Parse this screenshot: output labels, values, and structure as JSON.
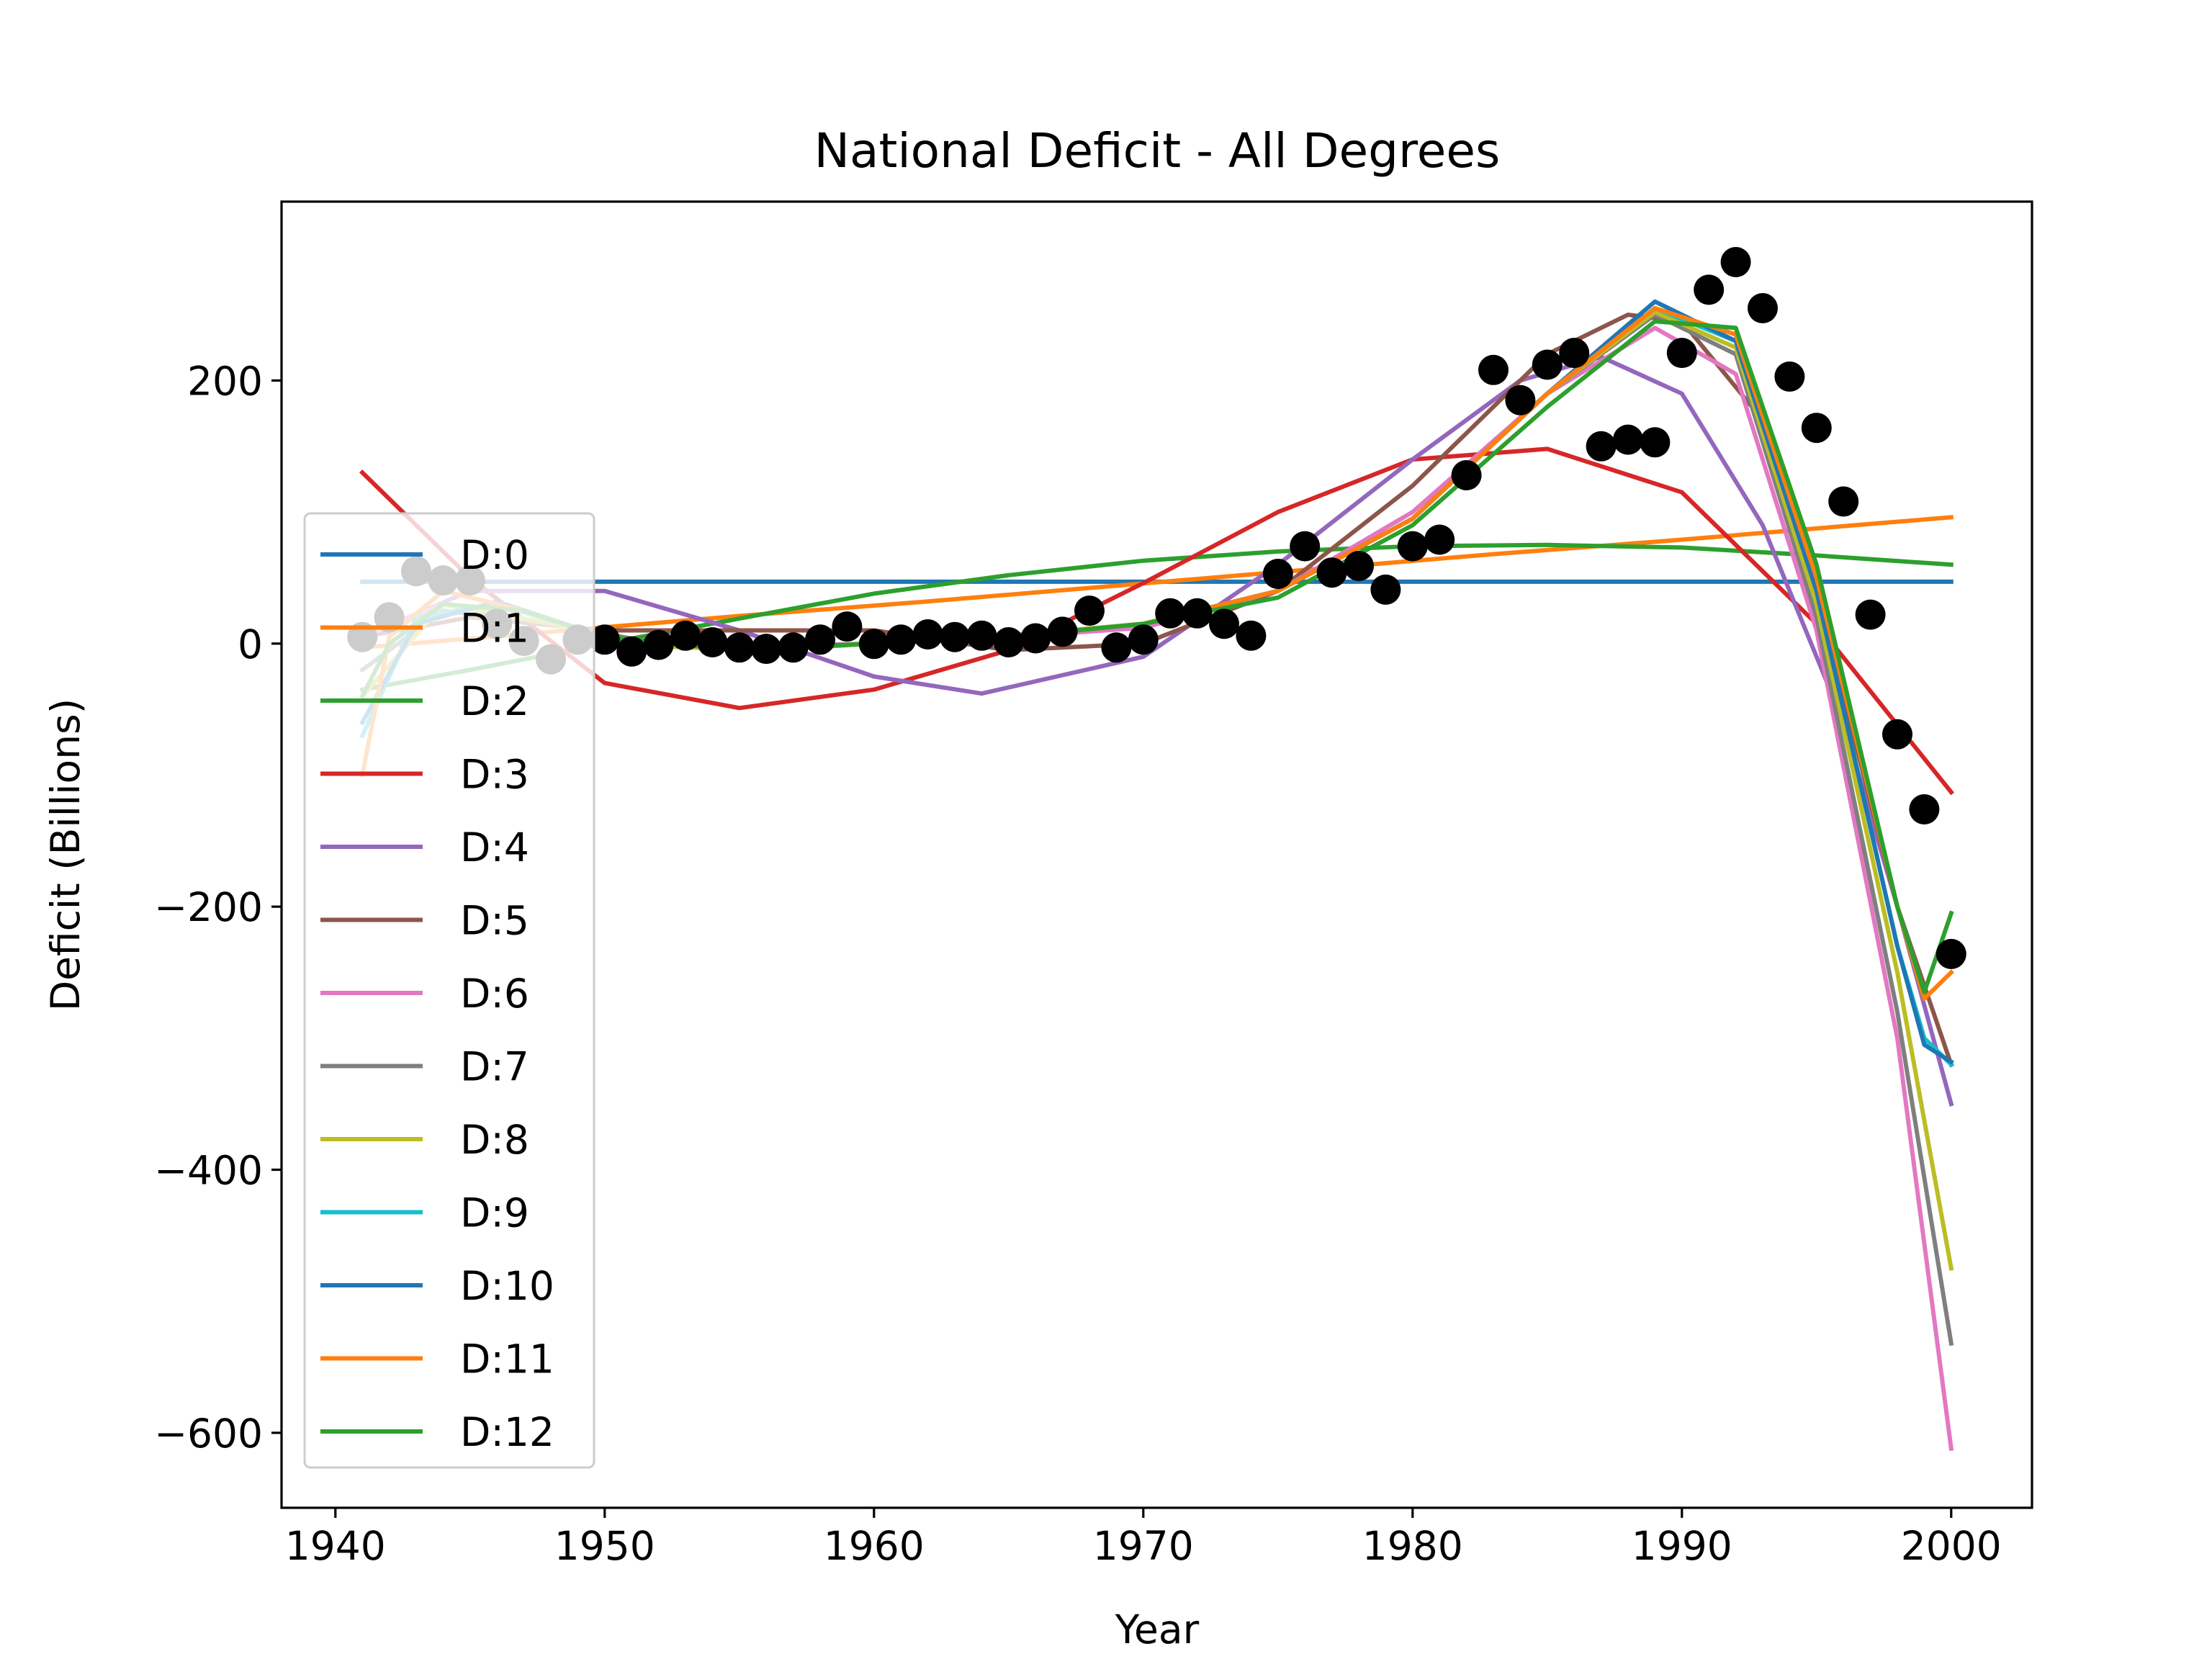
{
  "chart_data": {
    "type": "line",
    "title": "National Deficit - All Degrees",
    "xlabel": "Year",
    "ylabel": "Deficit (Billions)",
    "xlim": [
      1938,
      2003
    ],
    "ylim": [
      -657,
      336
    ],
    "xticks": [
      1940,
      1950,
      1960,
      1970,
      1980,
      1990,
      2000
    ],
    "yticks": [
      -600,
      -400,
      -200,
      0,
      200
    ],
    "grid": false,
    "legend_position": "center-left",
    "points": {
      "name": "",
      "color": "#000000",
      "x": [
        1941,
        1942,
        1943,
        1944,
        1945,
        1946,
        1947,
        1948,
        1949,
        1950,
        1951,
        1952,
        1953,
        1954,
        1955,
        1956,
        1957,
        1958,
        1959,
        1960,
        1961,
        1962,
        1963,
        1964,
        1965,
        1966,
        1967,
        1968,
        1969,
        1970,
        1971,
        1972,
        1973,
        1974,
        1975,
        1976,
        1977,
        1978,
        1979,
        1980,
        1981,
        1982,
        1983,
        1984,
        1985,
        1986,
        1987,
        1988,
        1989,
        1990,
        1991,
        1992,
        1993,
        1994,
        1995,
        1996,
        1997,
        1998,
        1999,
        2000
      ],
      "y": [
        5,
        20,
        55,
        48,
        48,
        15,
        2,
        -12,
        3,
        3,
        -6,
        -1,
        6,
        1,
        -3,
        -4,
        -3,
        3,
        13,
        -0.3,
        3,
        7,
        5,
        6,
        1,
        4,
        9,
        25,
        -3,
        3,
        23,
        23,
        15,
        6,
        53,
        74,
        54,
        59,
        41,
        74,
        79,
        128,
        208,
        185,
        212,
        221,
        150,
        155,
        153,
        221,
        269,
        290,
        255,
        203,
        164,
        108,
        22,
        -69,
        -126,
        -236
      ]
    },
    "series": [
      {
        "name": "D:0",
        "color": "#1f77b4",
        "x": [
          1941,
          1948,
          1955,
          1962,
          1969,
          1976,
          1983,
          1990,
          1997,
          2000
        ],
        "y": [
          47,
          47,
          47,
          47,
          47,
          47,
          47,
          47,
          47,
          47
        ]
      },
      {
        "name": "D:1",
        "color": "#ff7f0e",
        "x": [
          1941,
          1948,
          1955,
          1962,
          1969,
          1976,
          1983,
          1990,
          1997,
          2000
        ],
        "y": [
          -3,
          9,
          21,
          32,
          44,
          56,
          68,
          79,
          91,
          96
        ]
      },
      {
        "name": "D:2",
        "color": "#2ca02c",
        "x": [
          1941,
          1945,
          1950,
          1955,
          1960,
          1965,
          1970,
          1975,
          1980,
          1985,
          1990,
          1995,
          2000
        ],
        "y": [
          -35,
          -20,
          0,
          19,
          38,
          52,
          63,
          70,
          74,
          75,
          73,
          67,
          60
        ]
      },
      {
        "name": "D:3",
        "color": "#d62728",
        "x": [
          1941,
          1945,
          1950,
          1955,
          1960,
          1965,
          1970,
          1975,
          1980,
          1985,
          1990,
          1995,
          2000
        ],
        "y": [
          130,
          50,
          -30,
          -49,
          -35,
          -5,
          46,
          100,
          140,
          148,
          115,
          15,
          -113
        ]
      },
      {
        "name": "D:4",
        "color": "#9467bd",
        "x": [
          1941,
          1945,
          1950,
          1955,
          1960,
          1964,
          1970,
          1975,
          1980,
          1984,
          1987,
          1990,
          1993,
          1996,
          1998,
          2000
        ],
        "y": [
          5,
          40,
          40,
          10,
          -25,
          -38,
          -10,
          60,
          140,
          200,
          218,
          190,
          90,
          -60,
          -200,
          -350
        ]
      },
      {
        "name": "D:5",
        "color": "#8c564b",
        "x": [
          1941,
          1945,
          1950,
          1955,
          1960,
          1965,
          1970,
          1975,
          1980,
          1985,
          1988,
          1990,
          1993,
          1996,
          1998,
          2000
        ],
        "y": [
          5,
          20,
          10,
          10,
          10,
          -5,
          0,
          40,
          120,
          220,
          250,
          245,
          170,
          -40,
          -200,
          -320
        ]
      },
      {
        "name": "D:6",
        "color": "#e377c2",
        "x": [
          1941,
          1944,
          1948,
          1952,
          1956,
          1960,
          1965,
          1970,
          1975,
          1980,
          1985,
          1989,
          1992,
          1995,
          1998,
          2000
        ],
        "y": [
          5,
          30,
          15,
          0,
          -2,
          0,
          5,
          12,
          40,
          100,
          190,
          240,
          205,
          10,
          -300,
          -612
        ]
      },
      {
        "name": "D:7",
        "color": "#7f7f7f",
        "x": [
          1941,
          1944,
          1948,
          1952,
          1956,
          1960,
          1965,
          1970,
          1975,
          1980,
          1985,
          1989,
          1992,
          1995,
          1998,
          2000
        ],
        "y": [
          -20,
          25,
          15,
          0,
          -3,
          0,
          6,
          15,
          40,
          95,
          190,
          250,
          220,
          20,
          -280,
          -532
        ]
      },
      {
        "name": "D:8",
        "color": "#bcbd22",
        "x": [
          1941,
          1944,
          1948,
          1952,
          1956,
          1960,
          1965,
          1970,
          1975,
          1980,
          1985,
          1989,
          1992,
          1995,
          1998,
          2000
        ],
        "y": [
          -40,
          30,
          15,
          -2,
          -5,
          0,
          6,
          15,
          40,
          95,
          190,
          252,
          225,
          30,
          -250,
          -475
        ]
      },
      {
        "name": "D:9",
        "color": "#17becf",
        "x": [
          1941,
          1943,
          1946,
          1950,
          1955,
          1960,
          1965,
          1970,
          1975,
          1980,
          1985,
          1989,
          1992,
          1995,
          1998,
          1999,
          2000
        ],
        "y": [
          -70,
          20,
          30,
          5,
          -5,
          0,
          5,
          15,
          40,
          95,
          190,
          255,
          230,
          40,
          -230,
          -300,
          -320
        ]
      },
      {
        "name": "D:10",
        "color": "#1f77b4",
        "x": [
          1941,
          1943,
          1946,
          1950,
          1955,
          1960,
          1965,
          1970,
          1975,
          1980,
          1985,
          1989,
          1992,
          1995,
          1998,
          1999,
          2000
        ],
        "y": [
          -60,
          15,
          32,
          5,
          -5,
          0,
          5,
          15,
          40,
          95,
          190,
          260,
          230,
          40,
          -230,
          -305,
          -318
        ]
      },
      {
        "name": "D:11",
        "color": "#ff7f0e",
        "x": [
          1941,
          1942,
          1944,
          1947,
          1950,
          1955,
          1960,
          1965,
          1970,
          1975,
          1980,
          1985,
          1989,
          1992,
          1995,
          1998,
          1999,
          2000
        ],
        "y": [
          -100,
          5,
          40,
          25,
          5,
          -5,
          0,
          5,
          15,
          40,
          95,
          190,
          255,
          235,
          50,
          -200,
          -270,
          -250
        ]
      },
      {
        "name": "D:12",
        "color": "#2ca02c",
        "x": [
          1941,
          1942,
          1944,
          1947,
          1950,
          1955,
          1960,
          1965,
          1970,
          1975,
          1980,
          1985,
          1989,
          1992,
          1995,
          1998,
          1999,
          2000
        ],
        "y": [
          -40,
          0,
          30,
          25,
          5,
          -5,
          0,
          5,
          15,
          35,
          90,
          180,
          245,
          240,
          60,
          -200,
          -265,
          -205
        ]
      }
    ]
  }
}
